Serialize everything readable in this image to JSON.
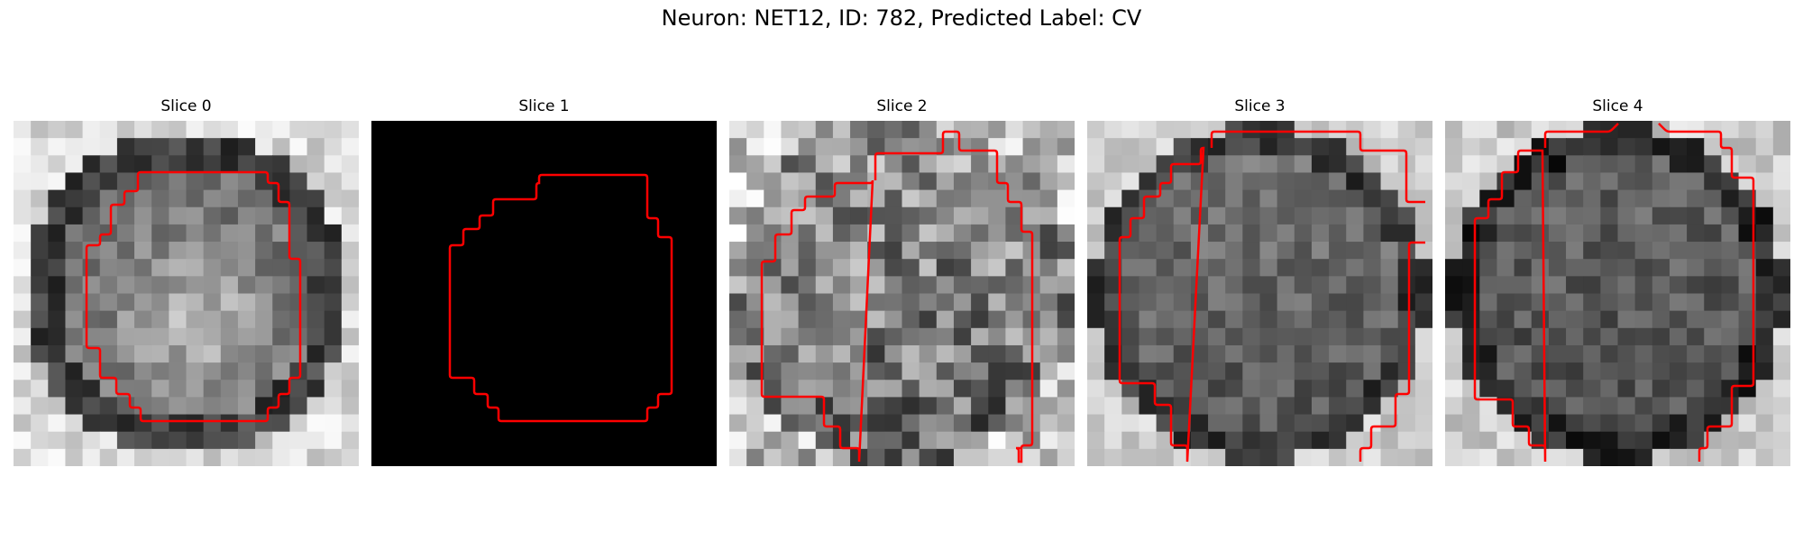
{
  "figure": {
    "title": "Neuron: NET12, ID: 782, Predicted Label: CV",
    "contour_color": "#ff0000",
    "colormap": "gray",
    "grid_size": 20,
    "panels": [
      {
        "title": "Slice 0",
        "image_kind": "blurred-ring",
        "contrast": 0.9,
        "seed": 11
      },
      {
        "title": "Slice 1",
        "image_kind": "black",
        "contrast": 0.0,
        "seed": 0
      },
      {
        "title": "Slice 2",
        "image_kind": "noisy",
        "contrast": 1.0,
        "seed": 23
      },
      {
        "title": "Slice 3",
        "image_kind": "smooth-ring",
        "contrast": 0.8,
        "seed": 37
      },
      {
        "title": "Slice 4",
        "image_kind": "dark-ring",
        "contrast": 0.85,
        "seed": 51
      }
    ]
  }
}
